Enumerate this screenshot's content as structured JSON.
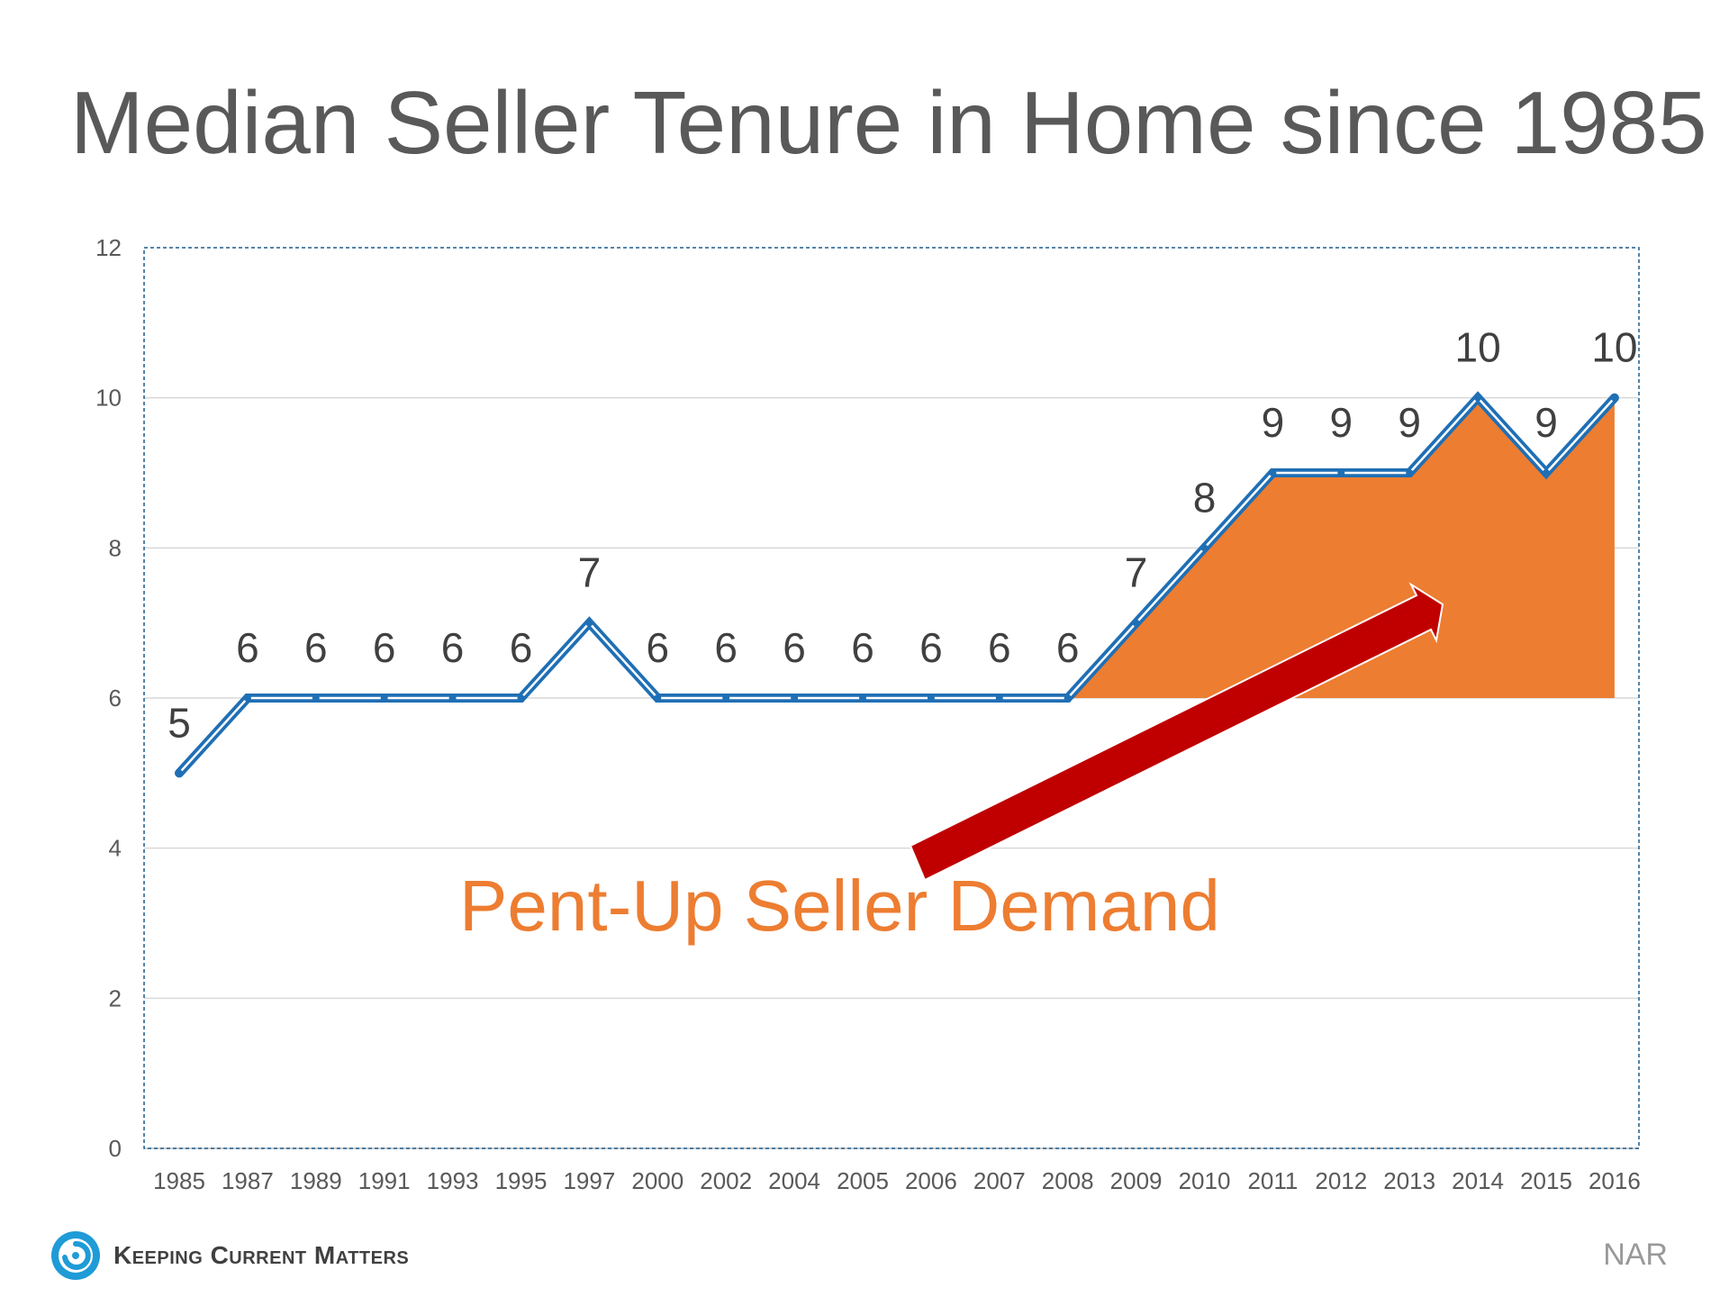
{
  "title": "Median Seller Tenure in Home since 1985",
  "annotation": "Pent-Up Seller Demand",
  "brand": "Keeping Current Matters",
  "source": "NAR",
  "colors": {
    "line": "#1F6FB5",
    "area": "#ED7D31",
    "arrow": "#C00000",
    "annotation": "#ED7D31",
    "title": "#595959",
    "grid": "#d9d9d9",
    "frame": "#1F5C8B"
  },
  "icons": {
    "logo": "swirl-icon"
  },
  "chart_data": {
    "type": "line",
    "categories": [
      "1985",
      "1987",
      "1989",
      "1991",
      "1993",
      "1995",
      "1997",
      "2000",
      "2002",
      "2004",
      "2005",
      "2006",
      "2007",
      "2008",
      "2009",
      "2010",
      "2011",
      "2012",
      "2013",
      "2014",
      "2015",
      "2016"
    ],
    "series": [
      {
        "values": [
          5,
          6,
          6,
          6,
          6,
          6,
          7,
          6,
          6,
          6,
          6,
          6,
          6,
          6,
          7,
          8,
          9,
          9,
          9,
          10,
          9,
          10
        ]
      }
    ],
    "data_labels": [
      "5",
      "6",
      "6",
      "6",
      "6",
      "6",
      "7",
      "6",
      "6",
      "6",
      "6",
      "6",
      "6",
      "6",
      "7",
      "8",
      "9",
      "9",
      "9",
      "10",
      "9",
      "10"
    ],
    "y_ticks": [
      "0",
      "2",
      "4",
      "6",
      "8",
      "10",
      "12"
    ],
    "ylim": [
      0,
      12
    ],
    "grid": true,
    "highlight_area": {
      "from_category": "2008",
      "to_category": "2016",
      "baseline": 6
    },
    "arrow": {
      "label": "Pent-Up Seller Demand"
    }
  }
}
